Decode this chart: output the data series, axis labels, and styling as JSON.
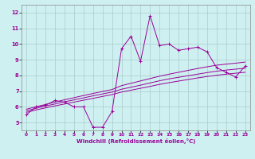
{
  "xlabel": "Windchill (Refroidissement éolien,°C)",
  "background_color": "#cff0f0",
  "line_color": "#990099",
  "grid_color": "#aacccc",
  "xlim": [
    -0.5,
    23.5
  ],
  "ylim": [
    4.5,
    12.5
  ],
  "xticks": [
    0,
    1,
    2,
    3,
    4,
    5,
    6,
    7,
    8,
    9,
    10,
    11,
    12,
    13,
    14,
    15,
    16,
    17,
    18,
    19,
    20,
    21,
    22,
    23
  ],
  "yticks": [
    5,
    6,
    7,
    8,
    9,
    10,
    11,
    12
  ],
  "series": [
    [
      5.5,
      6.0,
      6.1,
      6.4,
      6.3,
      6.0,
      6.0,
      4.7,
      4.7,
      5.7,
      9.7,
      10.5,
      8.9,
      11.8,
      9.9,
      10.0,
      9.6,
      9.7,
      9.8,
      9.5,
      8.5,
      8.2,
      7.9,
      8.6
    ],
    [
      5.85,
      6.0,
      6.15,
      6.3,
      6.45,
      6.58,
      6.72,
      6.85,
      6.98,
      7.1,
      7.35,
      7.5,
      7.65,
      7.8,
      7.95,
      8.08,
      8.2,
      8.32,
      8.44,
      8.55,
      8.65,
      8.72,
      8.78,
      8.85
    ],
    [
      5.75,
      5.9,
      6.05,
      6.18,
      6.32,
      6.44,
      6.57,
      6.7,
      6.82,
      6.94,
      7.12,
      7.25,
      7.38,
      7.52,
      7.66,
      7.78,
      7.88,
      7.98,
      8.08,
      8.18,
      8.27,
      8.34,
      8.4,
      8.46
    ],
    [
      5.65,
      5.8,
      5.93,
      6.06,
      6.18,
      6.3,
      6.42,
      6.54,
      6.66,
      6.78,
      6.94,
      7.06,
      7.18,
      7.3,
      7.43,
      7.54,
      7.64,
      7.74,
      7.84,
      7.93,
      8.01,
      8.08,
      8.14,
      8.2
    ]
  ]
}
